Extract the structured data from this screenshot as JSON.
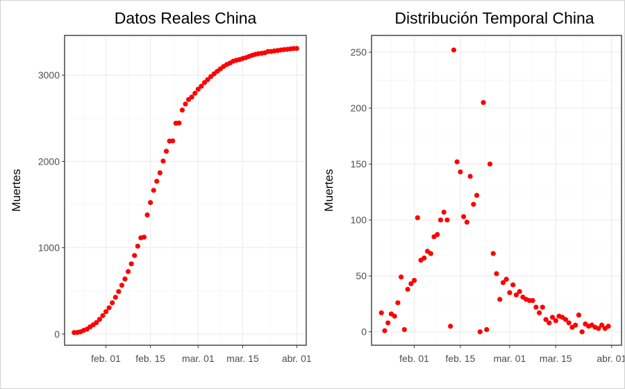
{
  "chart_data": [
    {
      "type": "scatter",
      "title": "Datos Reales China",
      "xlabel": "",
      "ylabel": "Muertes",
      "x_date_start": "2020-01-22",
      "x_tick_labels": [
        "feb. 01",
        "feb. 15",
        "mar. 01",
        "mar. 15",
        "abr. 01"
      ],
      "x_tick_dates": [
        "2020-02-01",
        "2020-02-15",
        "2020-03-01",
        "2020-03-15",
        "2020-04-01"
      ],
      "xlim": [
        "2020-01-19",
        "2020-04-04"
      ],
      "y_ticks": [
        0,
        1000,
        2000,
        3000
      ],
      "ylim": [
        -130,
        3460
      ],
      "grid": true,
      "point_color": "#ff0000",
      "series": [
        {
          "values": [
            17,
            18,
            26,
            42,
            56,
            82,
            106,
            132,
            170,
            213,
            259,
            304,
            362,
            426,
            492,
            565,
            638,
            724,
            813,
            910,
            1018,
            1115,
            1123,
            1380,
            1523,
            1665,
            1770,
            1868,
            2004,
            2118,
            2236,
            2238,
            2443,
            2445,
            2595,
            2665,
            2717,
            2746,
            2790,
            2837,
            2872,
            2914,
            2947,
            2983,
            3015,
            3044,
            3072,
            3100,
            3123,
            3139,
            3161,
            3172,
            3180,
            3193,
            3203,
            3217,
            3230,
            3241,
            3249,
            3253,
            3259,
            3274,
            3274,
            3281,
            3285,
            3291,
            3296,
            3299,
            3304,
            3308,
            3309
          ]
        }
      ]
    },
    {
      "type": "scatter",
      "title": "Distribución Temporal China",
      "xlabel": "",
      "ylabel": "Muertes",
      "x_date_start": "2020-01-22",
      "x_tick_labels": [
        "feb. 01",
        "feb. 15",
        "mar. 01",
        "mar. 15",
        "abr. 01"
      ],
      "x_tick_dates": [
        "2020-02-01",
        "2020-02-15",
        "2020-03-01",
        "2020-03-15",
        "2020-04-01"
      ],
      "xlim": [
        "2020-01-19",
        "2020-04-04"
      ],
      "y_ticks": [
        0,
        50,
        100,
        150,
        200,
        250
      ],
      "ylim": [
        -12,
        265
      ],
      "grid": true,
      "point_color": "#ff0000",
      "series": [
        {
          "values": [
            17,
            1,
            8,
            16,
            14,
            26,
            49,
            2,
            38,
            43,
            46,
            102,
            64,
            66,
            72,
            70,
            85,
            87,
            100,
            107,
            100,
            5,
            252,
            152,
            143,
            103,
            98,
            139,
            114,
            122,
            0,
            205,
            2,
            150,
            70,
            52,
            29,
            44,
            47,
            35,
            42,
            33,
            36,
            31,
            29,
            28,
            28,
            22,
            17,
            22,
            11,
            8,
            13,
            10,
            14,
            13,
            11,
            8,
            4,
            6,
            15,
            0,
            7,
            5,
            6,
            4,
            3,
            6,
            3,
            5
          ]
        }
      ]
    }
  ]
}
